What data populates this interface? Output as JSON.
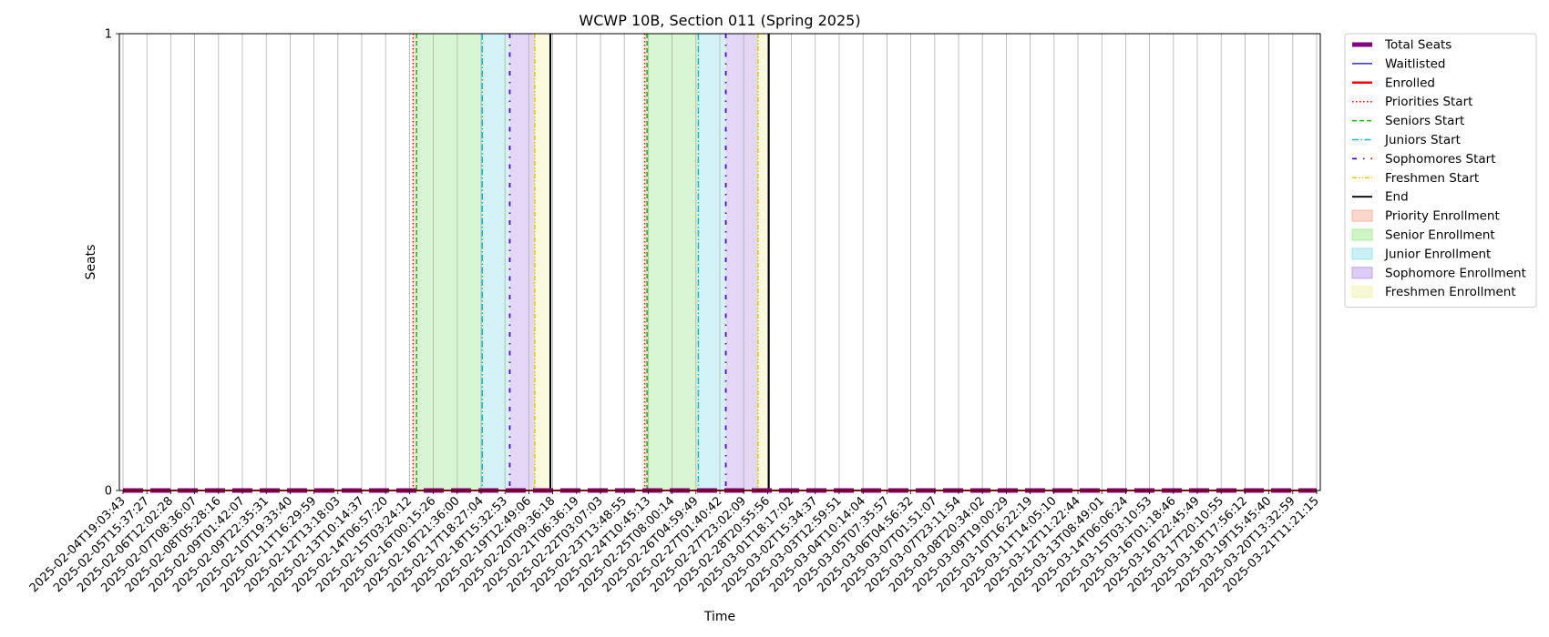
{
  "chart_data": {
    "type": "line",
    "title": "WCWP 10B, Section 011 (Spring 2025)",
    "xlabel": "Time",
    "ylabel": "Seats",
    "ylim": [
      0,
      1
    ],
    "yticks": [
      "0",
      "1"
    ],
    "grid": "vertical",
    "legend_placement": "outside-right-top",
    "x": [
      "2025-02-04T19:03:43",
      "2025-02-05T15:37:27",
      "2025-02-06T12:02:28",
      "2025-02-07T08:36:07",
      "2025-02-08T05:28:16",
      "2025-02-09T01:42:07",
      "2025-02-09T22:35:31",
      "2025-02-10T19:33:40",
      "2025-02-11T16:29:59",
      "2025-02-12T13:18:03",
      "2025-02-13T10:14:37",
      "2025-02-14T06:57:20",
      "2025-02-15T03:24:12",
      "2025-02-16T00:15:26",
      "2025-02-16T21:36:00",
      "2025-02-17T18:27:04",
      "2025-02-18T15:32:53",
      "2025-02-19T12:49:06",
      "2025-02-20T09:36:18",
      "2025-02-21T06:36:19",
      "2025-02-22T03:07:03",
      "2025-02-23T13:48:55",
      "2025-02-24T10:45:13",
      "2025-02-25T08:00:14",
      "2025-02-26T04:59:49",
      "2025-02-27T01:40:42",
      "2025-02-27T23:02:09",
      "2025-02-28T20:55:56",
      "2025-03-01T18:17:02",
      "2025-03-02T15:34:37",
      "2025-03-03T12:59:51",
      "2025-03-04T10:14:04",
      "2025-03-05T07:35:57",
      "2025-03-06T04:56:32",
      "2025-03-07T01:51:07",
      "2025-03-07T23:11:54",
      "2025-03-08T20:34:02",
      "2025-03-09T19:00:29",
      "2025-03-10T16:22:19",
      "2025-03-11T14:05:10",
      "2025-03-12T11:22:44",
      "2025-03-13T08:49:01",
      "2025-03-14T06:06:24",
      "2025-03-15T03:10:53",
      "2025-03-16T01:18:46",
      "2025-03-16T22:45:49",
      "2025-03-17T20:10:55",
      "2025-03-18T17:56:12",
      "2025-03-19T15:45:40",
      "2025-03-20T13:32:59",
      "2025-03-21T11:21:15"
    ],
    "series": [
      {
        "name": "Total Seats",
        "color": "#800080",
        "style": "thick-solid",
        "values": [
          0,
          0,
          0,
          0,
          0,
          0,
          0,
          0,
          0,
          0,
          0,
          0,
          0,
          0,
          0,
          0,
          0,
          0,
          0,
          0,
          0,
          0,
          0,
          0,
          0,
          0,
          0,
          0,
          0,
          0,
          0,
          0,
          0,
          0,
          0,
          0,
          0,
          0,
          0,
          0,
          0,
          0,
          0,
          0,
          0,
          0,
          0,
          0,
          0,
          0,
          0
        ]
      },
      {
        "name": "Waitlisted",
        "color": "#0000ff",
        "style": "solid",
        "values": [
          0,
          0,
          0,
          0,
          0,
          0,
          0,
          0,
          0,
          0,
          0,
          0,
          0,
          0,
          0,
          0,
          0,
          0,
          0,
          0,
          0,
          0,
          0,
          0,
          0,
          0,
          0,
          0,
          0,
          0,
          0,
          0,
          0,
          0,
          0,
          0,
          0,
          0,
          0,
          0,
          0,
          0,
          0,
          0,
          0,
          0,
          0,
          0,
          0,
          0,
          0
        ]
      },
      {
        "name": "Enrolled",
        "color": "#ff0000",
        "style": "solid",
        "values": [
          0,
          0,
          0,
          0,
          0,
          0,
          0,
          0,
          0,
          0,
          0,
          0,
          0,
          0,
          0,
          0,
          0,
          0,
          0,
          0,
          0,
          0,
          0,
          0,
          0,
          0,
          0,
          0,
          0,
          0,
          0,
          0,
          0,
          0,
          0,
          0,
          0,
          0,
          0,
          0,
          0,
          0,
          0,
          0,
          0,
          0,
          0,
          0,
          0,
          0,
          0
        ]
      }
    ],
    "phase_periods": [
      {
        "priority_start": 12.15,
        "senior_start": 12.3,
        "junior_start": 15.05,
        "sophomore_start": 16.2,
        "freshmen_start": 17.25,
        "end": 17.9
      },
      {
        "priority_start": 21.85,
        "senior_start": 21.95,
        "junior_start": 24.1,
        "sophomore_start": 25.25,
        "freshmen_start": 26.6,
        "end": 27.05
      }
    ],
    "legend": [
      {
        "label": "Total Seats",
        "kind": "line",
        "color": "#800080",
        "dash": "",
        "width": 5
      },
      {
        "label": "Waitlisted",
        "kind": "line",
        "color": "#0000ff",
        "dash": "",
        "width": 1.2
      },
      {
        "label": "Enrolled",
        "kind": "line",
        "color": "#ff0000",
        "dash": "",
        "width": 2.5
      },
      {
        "label": "Priorities Start",
        "kind": "line",
        "color": "#ff0000",
        "dash": "1.5,2.5",
        "width": 1.5
      },
      {
        "label": "Seniors Start",
        "kind": "line",
        "color": "#00bb00",
        "dash": "5,3",
        "width": 1.5
      },
      {
        "label": "Juniors Start",
        "kind": "line",
        "color": "#00bbcc",
        "dash": "7,2.5,1.5,2.5",
        "width": 1.5
      },
      {
        "label": "Sophomores Start",
        "kind": "line",
        "color": "#5500cc",
        "dash": "5,7,1.5,7",
        "width": 1.8
      },
      {
        "label": "Freshmen Start",
        "kind": "line",
        "color": "#ddcc00",
        "dash": "5,2,1.5,2,1.5,2",
        "width": 1.5
      },
      {
        "label": "End",
        "kind": "line",
        "color": "#000000",
        "dash": "",
        "width": 1.8
      },
      {
        "label": "Priority Enrollment",
        "kind": "patch",
        "color": "#f5b7a1"
      },
      {
        "label": "Senior Enrollment",
        "kind": "patch",
        "color": "#a8eb9a"
      },
      {
        "label": "Junior Enrollment",
        "kind": "patch",
        "color": "#9fe5ee"
      },
      {
        "label": "Sophomore Enrollment",
        "kind": "patch",
        "color": "#c0a3ee"
      },
      {
        "label": "Freshmen Enrollment",
        "kind": "patch",
        "color": "#f3f3b5"
      }
    ],
    "colors": {
      "priority_fill": "#f5b7a1",
      "senior_fill": "#a8eb9a",
      "junior_fill": "#9fe5ee",
      "sophomore_fill": "#c0a3ee",
      "freshmen_fill": "#f3f3b5",
      "priority_line": "#ff0000",
      "senior_line": "#00bb00",
      "junior_line": "#00bbcc",
      "sophomore_line": "#5500cc",
      "freshmen_line": "#ddcc00",
      "end_line": "#000000",
      "grid": "#b0b0b0"
    }
  }
}
